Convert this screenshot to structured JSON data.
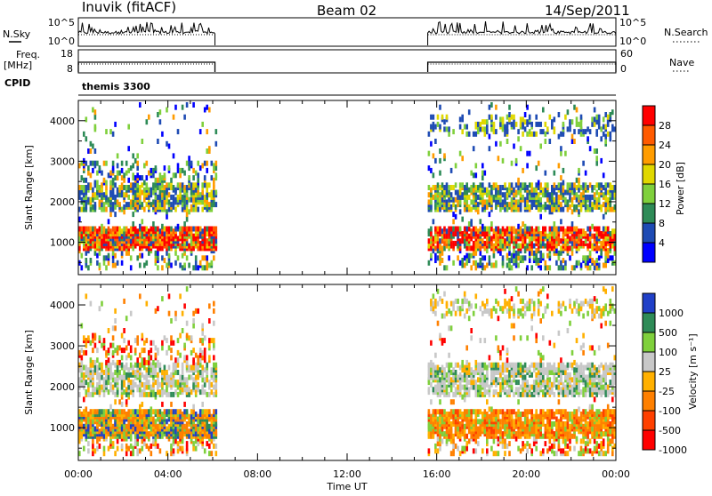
{
  "header": {
    "station": "Inuvik (fitACF)",
    "beam": "Beam 02",
    "date": "14/Sep/2011"
  },
  "strips": {
    "nsky_label": "N.Sky",
    "nsky_ticks": [
      "10^5",
      "10^0"
    ],
    "nsearch_label": "N.Search",
    "nsearch_ticks": [
      "10^5",
      "10^0"
    ],
    "freq_label": "Freq.",
    "freq_unit": "[MHz]",
    "freq_ticks": [
      "18",
      "8"
    ],
    "nave_label": "Nave",
    "nave_ticks": [
      "60",
      "0"
    ],
    "cpid_label": "CPID",
    "cpid_value": "themis 3300"
  },
  "chart_data": [
    {
      "type": "heatmap",
      "name": "power",
      "ylabel": "Slant Range [km]",
      "y_ticks": [
        "4000",
        "3000",
        "2000",
        "1000"
      ],
      "ylim": [
        200,
        4500
      ],
      "x_ticks": [
        "00:00",
        "04:00",
        "08:00",
        "12:00",
        "16:00",
        "20:00",
        "00:00"
      ],
      "xlim_hours": [
        0,
        24
      ],
      "data_coverage_hours": [
        [
          0.0,
          6.1
        ],
        [
          15.6,
          24.0
        ]
      ],
      "colorbar_label": "Power [dB]",
      "colorbar_ticks": [
        "28",
        "24",
        "20",
        "16",
        "12",
        "8",
        "4"
      ],
      "colorbar_colors": [
        "#ff0000",
        "#ff5a00",
        "#ff9c00",
        "#e0d800",
        "#7fd03c",
        "#2e8b57",
        "#1e4bb4",
        "#0000ff"
      ],
      "bands_km": [
        [
          800,
          1300
        ],
        [
          1800,
          2400
        ],
        [
          3700,
          4200
        ]
      ]
    },
    {
      "type": "heatmap",
      "name": "velocity",
      "ylabel": "Slant Range [km]",
      "y_ticks": [
        "4000",
        "3000",
        "2000",
        "1000"
      ],
      "ylim": [
        200,
        4500
      ],
      "x_ticks": [
        "00:00",
        "04:00",
        "08:00",
        "12:00",
        "16:00",
        "20:00",
        "00:00"
      ],
      "xlabel": "Time UT",
      "xlim_hours": [
        0,
        24
      ],
      "data_coverage_hours": [
        [
          0.0,
          6.1
        ],
        [
          15.6,
          24.0
        ]
      ],
      "colorbar_label": "Velocity [m s⁻¹]",
      "colorbar_ticks": [
        "1000",
        "500",
        "100",
        "25",
        "-25",
        "-100",
        "-500",
        "-1000"
      ],
      "colorbar_colors": [
        "#2040c8",
        "#2e8b57",
        "#7fd03c",
        "#c8c8c8",
        "#ffb000",
        "#ff8000",
        "#ff4000",
        "#ff0000"
      ]
    }
  ],
  "colors": {
    "frame": "#000000",
    "gray_ground": "#c8c8c8"
  }
}
